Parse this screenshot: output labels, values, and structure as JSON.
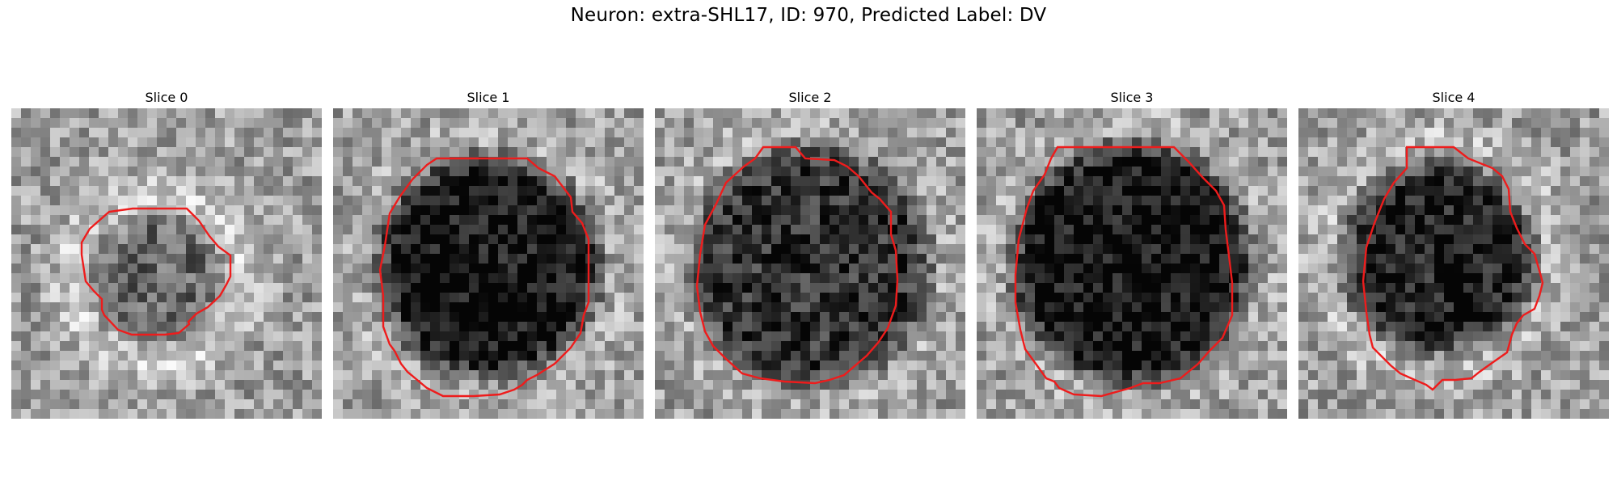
{
  "figure": {
    "suptitle": "Neuron: extra-SHL17, ID: 970, Predicted Label: DV",
    "contour_color": "#ee1c1c",
    "colormap": "gray",
    "image_grid": [
      32,
      32
    ]
  },
  "panels": [
    {
      "title": "Slice 0",
      "dark_center": [
        0.47,
        0.55
      ],
      "dark_radius": 0.2,
      "darkness": 0.22,
      "bright_ring": 0.18,
      "contour": "small-octagon-left"
    },
    {
      "title": "Slice 1",
      "dark_center": [
        0.5,
        0.51
      ],
      "dark_radius": 0.35,
      "darkness": 0.55,
      "bright_ring": 0.06,
      "contour": "large-octagon"
    },
    {
      "title": "Slice 2",
      "dark_center": [
        0.5,
        0.51
      ],
      "dark_radius": 0.38,
      "darkness": 0.42,
      "bright_ring": 0.06,
      "contour": "large-octagon"
    },
    {
      "title": "Slice 3",
      "dark_center": [
        0.5,
        0.5
      ],
      "dark_radius": 0.38,
      "darkness": 0.55,
      "bright_ring": 0.06,
      "contour": "large-octagon"
    },
    {
      "title": "Slice 4",
      "dark_center": [
        0.45,
        0.48
      ],
      "dark_radius": 0.3,
      "darkness": 0.5,
      "bright_ring": 0.12,
      "contour": "medium-octagon"
    }
  ]
}
